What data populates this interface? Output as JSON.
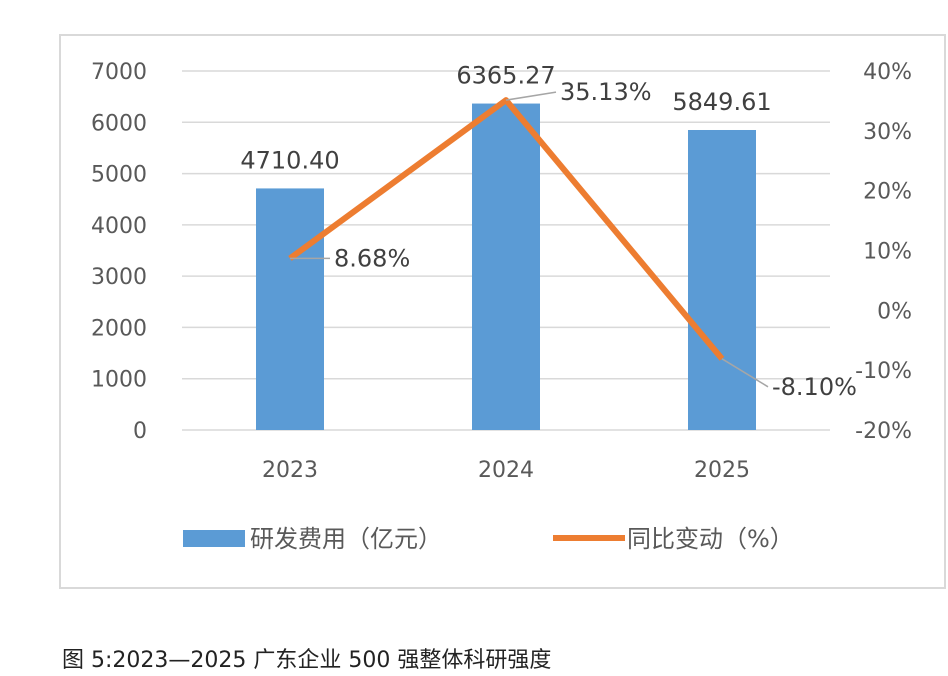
{
  "chart_data": {
    "type": "bar+line",
    "categories": [
      "2023",
      "2024",
      "2025"
    ],
    "series": [
      {
        "name": "研发费用（亿元）",
        "type": "bar",
        "axis": "left",
        "values": [
          4710.4,
          6365.27,
          5849.61
        ],
        "labels": [
          "4710.40",
          "6365.27",
          "5849.61"
        ],
        "color": "#5b9bd5"
      },
      {
        "name": "同比变动（%）",
        "type": "line",
        "axis": "right",
        "values": [
          8.68,
          35.13,
          -8.1
        ],
        "labels": [
          "8.68%",
          "35.13%",
          "-8.10%"
        ],
        "color": "#ed7d31"
      }
    ],
    "left_axis": {
      "range": [
        0,
        7000
      ],
      "ticks": [
        "0",
        "1000",
        "2000",
        "3000",
        "4000",
        "5000",
        "6000",
        "7000"
      ]
    },
    "right_axis": {
      "range": [
        -20,
        40
      ],
      "ticks": [
        "-20%",
        "-10%",
        "0%",
        "10%",
        "20%",
        "30%",
        "40%"
      ]
    },
    "grid": true,
    "legend": "bottom"
  },
  "caption": "图 5:2023—2025 广东企业 500 强整体科研强度"
}
